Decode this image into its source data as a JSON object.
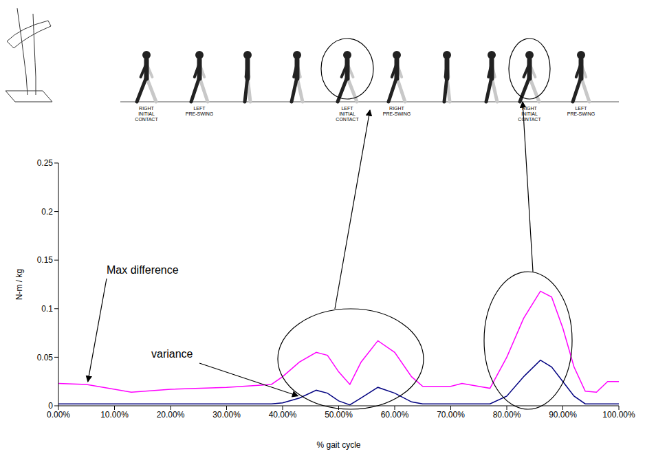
{
  "chart_data": {
    "type": "line",
    "xlabel": "% gait cycle",
    "ylabel": "N-m / kg",
    "x": [
      0,
      5,
      10,
      13,
      20,
      30,
      38,
      40,
      43,
      46,
      48,
      50,
      52,
      54,
      57,
      60,
      63,
      65,
      70,
      72,
      75,
      77,
      80,
      83,
      86,
      88,
      90,
      92,
      94,
      96,
      98,
      100
    ],
    "series": [
      {
        "name": "Max difference",
        "color": "#ff00ff",
        "values": [
          0.023,
          0.022,
          0.017,
          0.014,
          0.017,
          0.019,
          0.022,
          0.03,
          0.045,
          0.055,
          0.052,
          0.035,
          0.022,
          0.045,
          0.067,
          0.055,
          0.03,
          0.02,
          0.02,
          0.023,
          0.02,
          0.018,
          0.05,
          0.09,
          0.118,
          0.112,
          0.08,
          0.04,
          0.015,
          0.014,
          0.025,
          0.025
        ]
      },
      {
        "name": "variance",
        "color": "#000080",
        "values": [
          0.002,
          0.002,
          0.002,
          0.002,
          0.002,
          0.002,
          0.002,
          0.003,
          0.008,
          0.016,
          0.013,
          0.005,
          0.001,
          0.008,
          0.019,
          0.013,
          0.004,
          0.002,
          0.002,
          0.002,
          0.002,
          0.002,
          0.01,
          0.03,
          0.047,
          0.04,
          0.025,
          0.01,
          0.002,
          0.002,
          0.002,
          0.002
        ]
      }
    ],
    "xlim": [
      0,
      100
    ],
    "xticks": [
      {
        "value": 0,
        "label": "0.00%"
      },
      {
        "value": 10,
        "label": "10.00%"
      },
      {
        "value": 20,
        "label": "20.00%"
      },
      {
        "value": 30,
        "label": "30.00%"
      },
      {
        "value": 40,
        "label": "40.00%"
      },
      {
        "value": 50,
        "label": "50.00%"
      },
      {
        "value": 60,
        "label": "60.00%"
      },
      {
        "value": 70,
        "label": "70.00%"
      },
      {
        "value": 80,
        "label": "80.00%"
      },
      {
        "value": 90,
        "label": "90.00%"
      },
      {
        "value": 100,
        "label": "100.00%"
      }
    ],
    "ylim": [
      0,
      0.25
    ],
    "yticks": [
      0,
      0.05,
      0.1,
      0.15,
      0.2,
      0.25
    ],
    "grid": false,
    "phase_labels": [
      "RIGHT INITIAL CONTACT",
      "LEFT PRE-SWING",
      "LEFT INITIAL CONTACT",
      "RIGHT PRE-SWING",
      "RIGHT INITIAL CONTACT",
      "LEFT PRE-SWING"
    ]
  }
}
